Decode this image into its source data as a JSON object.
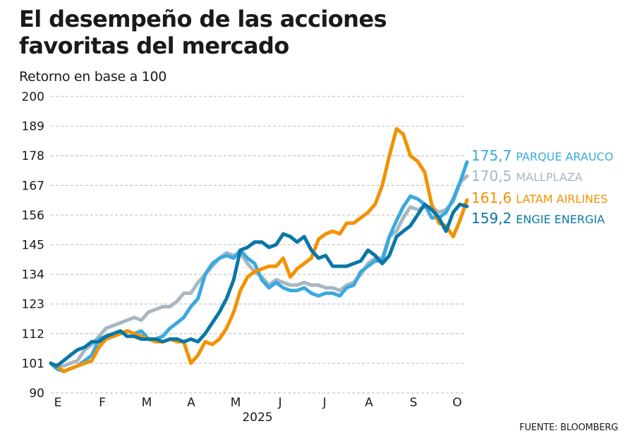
{
  "chart_data": {
    "type": "line",
    "title": "El desempeño de las acciones favoritas del mercado",
    "subtitle": "Retorno en base a 100",
    "xlabel": "2025",
    "ylabel": "",
    "source": "FUENTE: BLOOMBERG",
    "ylim": [
      90,
      200
    ],
    "yticks": [
      200,
      189,
      178,
      167,
      156,
      145,
      134,
      123,
      112,
      101,
      90
    ],
    "xticks": [
      "E",
      "F",
      "M",
      "A",
      "M",
      "J",
      "J",
      "A",
      "S",
      "O"
    ],
    "xlim_months": [
      0,
      9.3
    ],
    "grid": true,
    "legend_placement": "right-end-labels",
    "x": [
      0.0,
      0.13,
      0.29,
      0.44,
      0.6,
      0.76,
      0.92,
      1.08,
      1.24,
      1.4,
      1.56,
      1.71,
      1.87,
      2.03,
      2.19,
      2.35,
      2.51,
      2.67,
      2.83,
      2.98,
      3.14,
      3.3,
      3.46,
      3.62,
      3.78,
      3.94,
      4.1,
      4.25,
      4.41,
      4.57,
      4.73,
      4.89,
      5.05,
      5.21,
      5.37,
      5.52,
      5.68,
      5.84,
      6.0,
      6.16,
      6.32,
      6.48,
      6.63,
      6.79,
      6.95,
      7.11,
      7.27,
      7.43,
      7.59,
      7.75,
      7.9,
      8.06,
      8.22,
      8.38,
      8.54,
      8.7,
      8.86,
      9.02,
      9.17,
      9.33
    ],
    "series": [
      {
        "name": "PARQUE ARAUCO",
        "last_value": "175,7",
        "color": "#3aa9e0",
        "values": [
          101,
          99,
          98,
          99,
          100,
          102,
          104,
          110,
          111,
          111,
          112,
          113,
          112,
          113,
          110,
          110,
          111,
          114,
          116,
          118,
          122,
          125,
          134,
          138,
          140,
          141,
          140,
          143,
          140,
          138,
          132,
          129,
          131,
          129,
          128,
          128,
          129,
          127,
          126,
          127,
          127,
          126,
          129,
          130,
          135,
          137,
          139,
          139,
          148,
          154,
          159,
          163,
          162,
          160,
          155,
          155,
          157,
          162,
          168,
          175.7
        ]
      },
      {
        "name": "MALLPLAZA",
        "last_value": "170,5",
        "color": "#a8b7c3",
        "values": [
          101,
          100,
          100,
          101,
          102,
          106,
          108,
          111,
          114,
          115,
          116,
          117,
          118,
          117,
          120,
          121,
          122,
          122,
          124,
          127,
          127,
          131,
          134,
          137,
          140,
          142,
          141,
          142,
          138,
          135,
          133,
          130,
          132,
          131,
          130,
          130,
          131,
          130,
          130,
          129,
          129,
          128,
          130,
          131,
          134,
          138,
          140,
          140,
          148,
          150,
          155,
          159,
          158,
          159,
          159,
          157,
          158,
          161,
          168,
          170.5
        ]
      },
      {
        "name": "LATAM AIRLINES",
        "last_value": "161,6",
        "color": "#f39200",
        "values": [
          101,
          100,
          98,
          99,
          100,
          101,
          102,
          107,
          110,
          111,
          112,
          113,
          112,
          111,
          110,
          109,
          109,
          110,
          109,
          109,
          101,
          104,
          109,
          108,
          110,
          114,
          120,
          128,
          133,
          135,
          136,
          137,
          137,
          140,
          133,
          136,
          138,
          140,
          147,
          149,
          150,
          149,
          153,
          153,
          155,
          157,
          160,
          167,
          178,
          188,
          186,
          178,
          176,
          172,
          160,
          153,
          152,
          148,
          154,
          161.6
        ]
      },
      {
        "name": "ENGIE ENERGIA",
        "last_value": "159,2",
        "color": "#0a77a6",
        "values": [
          101,
          100,
          102,
          104,
          106,
          107,
          109,
          109,
          111,
          112,
          113,
          111,
          111,
          110,
          110,
          110,
          109,
          110,
          110,
          109,
          110,
          109,
          112,
          116,
          120,
          125,
          132,
          143,
          144,
          146,
          146,
          144,
          145,
          149,
          148,
          146,
          148,
          143,
          140,
          141,
          137,
          137,
          137,
          138,
          139,
          143,
          141,
          138,
          141,
          148,
          150,
          152,
          156,
          160,
          158,
          155,
          150,
          157,
          160,
          159.2
        ]
      }
    ]
  }
}
